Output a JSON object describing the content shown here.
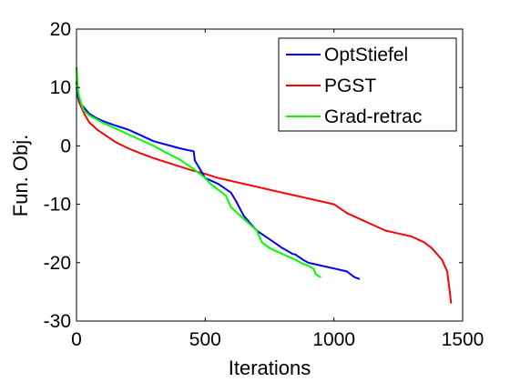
{
  "chart_data": {
    "type": "line",
    "title": "",
    "xlabel": "Iterations",
    "ylabel": "Fun. Obj.",
    "xlim": [
      0,
      1500
    ],
    "ylim": [
      -30,
      20
    ],
    "xticks": [
      0,
      500,
      1000,
      1500
    ],
    "yticks": [
      20,
      10,
      0,
      -10,
      -20,
      -30
    ],
    "grid": false,
    "legend_position": "top-right",
    "series": [
      {
        "name": "OptStiefel",
        "color": "#0000ff",
        "x": [
          0,
          5,
          10,
          20,
          30,
          50,
          80,
          100,
          150,
          200,
          250,
          300,
          350,
          400,
          440,
          455,
          460,
          480,
          500,
          550,
          600,
          620,
          650,
          700,
          750,
          800,
          840,
          850,
          880,
          900,
          950,
          1000,
          1050,
          1080,
          1100
        ],
        "y": [
          11,
          9,
          8,
          7,
          6.5,
          5.5,
          4.7,
          4.3,
          3.5,
          2.8,
          1.8,
          0.8,
          0.2,
          -0.4,
          -0.8,
          -0.9,
          -2.5,
          -4.0,
          -5.5,
          -6.5,
          -8,
          -9.5,
          -12,
          -14.5,
          -16,
          -17.5,
          -18.5,
          -18.6,
          -19.5,
          -20,
          -20.5,
          -21,
          -21.5,
          -22.5,
          -22.8
        ]
      },
      {
        "name": "PGST",
        "color": "#ff0000",
        "x": [
          0,
          5,
          10,
          20,
          30,
          50,
          80,
          100,
          150,
          200,
          250,
          300,
          350,
          400,
          450,
          500,
          550,
          600,
          650,
          700,
          750,
          800,
          850,
          900,
          950,
          1000,
          1050,
          1100,
          1150,
          1200,
          1250,
          1300,
          1350,
          1380,
          1420,
          1440,
          1450,
          1455
        ],
        "y": [
          10,
          8.5,
          7.5,
          6.5,
          5.5,
          4,
          2.8,
          2.2,
          0.7,
          -0.4,
          -1.3,
          -2.1,
          -2.8,
          -3.5,
          -4.2,
          -4.8,
          -5.5,
          -6.0,
          -6.5,
          -7.0,
          -7.5,
          -8.0,
          -8.5,
          -9.0,
          -9.5,
          -10.0,
          -11.5,
          -12.5,
          -13.5,
          -14.5,
          -15.0,
          -15.5,
          -16.5,
          -17.5,
          -19.5,
          -21.5,
          -25.0,
          -27.0
        ]
      },
      {
        "name": "Grad-retrac",
        "color": "#00ff00",
        "x": [
          0,
          5,
          10,
          20,
          30,
          50,
          80,
          100,
          150,
          200,
          250,
          300,
          350,
          400,
          450,
          500,
          520,
          550,
          580,
          600,
          650,
          700,
          720,
          750,
          800,
          850,
          880,
          900,
          920,
          930,
          940,
          950
        ],
        "y": [
          13.5,
          10,
          8.5,
          7,
          6,
          5.2,
          4.5,
          4,
          3,
          2,
          1,
          0,
          -1.2,
          -2.3,
          -3.8,
          -5.5,
          -6.5,
          -7.5,
          -8.5,
          -10.5,
          -12.5,
          -14.5,
          -16.5,
          -17.5,
          -18.5,
          -19.5,
          -20.2,
          -20.5,
          -21,
          -22,
          -22.3,
          -22.5
        ]
      }
    ]
  }
}
